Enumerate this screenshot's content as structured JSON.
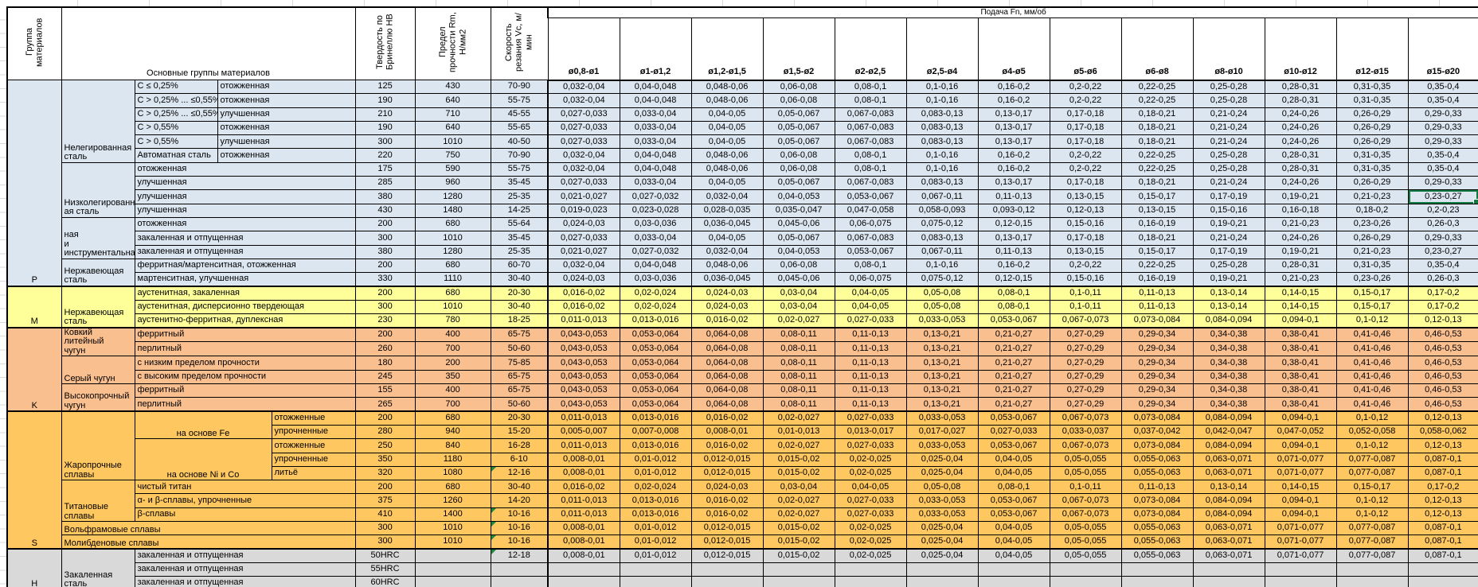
{
  "header": {
    "group_col": "Группа материалов",
    "materials_col": "Основные группы материалов",
    "hb_col": "Твердость по Бринеллю HB",
    "rm_col": "Предел прочности Rm, Н/мм2",
    "vc_col": "Скорость резания Vc, м/мин",
    "feed_title": "Подача Fn, мм/об",
    "feed_cols": [
      "ø0,8-ø1",
      "ø1-ø1,2",
      "ø1,2-ø1,5",
      "ø1,5-ø2",
      "ø2-ø2,5",
      "ø2,5-ø4",
      "ø4-ø5",
      "ø5-ø6",
      "ø6-ø8",
      "ø8-ø10",
      "ø10-ø12",
      "ø12-ø15",
      "ø15-ø20"
    ]
  },
  "group_colors": {
    "P": "#DCE6F1",
    "M": "#FFFF99",
    "K": "#FABF8F",
    "S": "#FFC75F",
    "H": "#D9D9D9"
  },
  "selection": {
    "row": 9,
    "feed_col": 13,
    "value": "0,23-0,27",
    "border_color": "#107C41"
  },
  "flag_color": "#1E8A3C",
  "feed_patterns": {
    "A": [
      "0,032-0,04",
      "0,04-0,048",
      "0,048-0,06",
      "0,06-0,08",
      "0,08-0,1",
      "0,1-0,16",
      "0,16-0,2",
      "0,2-0,22",
      "0,22-0,25",
      "0,25-0,28",
      "0,28-0,31",
      "0,31-0,35",
      "0,35-0,4"
    ],
    "B": [
      "0,027-0,033",
      "0,033-0,04",
      "0,04-0,05",
      "0,05-0,067",
      "0,067-0,083",
      "0,083-0,13",
      "0,13-0,17",
      "0,17-0,18",
      "0,18-0,21",
      "0,21-0,24",
      "0,24-0,26",
      "0,26-0,29",
      "0,29-0,33"
    ],
    "C": [
      "0,021-0,027",
      "0,027-0,032",
      "0,032-0,04",
      "0,04-0,053",
      "0,053-0,067",
      "0,067-0,11",
      "0,11-0,13",
      "0,13-0,15",
      "0,15-0,17",
      "0,17-0,19",
      "0,19-0,21",
      "0,21-0,23",
      "0,23-0,27"
    ],
    "D": [
      "0,019-0,023",
      "0,023-0,028",
      "0,028-0,035",
      "0,035-0,047",
      "0,047-0,058",
      "0,058-0,093",
      "0,093-0,12",
      "0,12-0,13",
      "0,13-0,15",
      "0,15-0,16",
      "0,16-0,18",
      "0,18-0,2",
      "0,2-0,23"
    ],
    "E": [
      "0,024-0,03",
      "0,03-0,036",
      "0,036-0,045",
      "0,045-0,06",
      "0,06-0,075",
      "0,075-0,12",
      "0,12-0,15",
      "0,15-0,16",
      "0,16-0,19",
      "0,19-0,21",
      "0,21-0,23",
      "0,23-0,26",
      "0,26-0,3"
    ],
    "F": [
      "0,016-0,02",
      "0,02-0,024",
      "0,024-0,03",
      "0,03-0,04",
      "0,04-0,05",
      "0,05-0,08",
      "0,08-0,1",
      "0,1-0,11",
      "0,11-0,13",
      "0,13-0,14",
      "0,14-0,15",
      "0,15-0,17",
      "0,17-0,2"
    ],
    "G": [
      "0,011-0,013",
      "0,013-0,016",
      "0,016-0,02",
      "0,02-0,027",
      "0,027-0,033",
      "0,033-0,053",
      "0,053-0,067",
      "0,067-0,073",
      "0,073-0,084",
      "0,084-0,094",
      "0,094-0,1",
      "0,1-0,12",
      "0,12-0,13"
    ],
    "H": [
      "0,043-0,053",
      "0,053-0,064",
      "0,064-0,08",
      "0,08-0,11",
      "0,11-0,13",
      "0,13-0,21",
      "0,21-0,27",
      "0,27-0,29",
      "0,29-0,34",
      "0,34-0,38",
      "0,38-0,41",
      "0,41-0,46",
      "0,46-0,53"
    ],
    "I": [
      "0,005-0,007",
      "0,007-0,008",
      "0,008-0,01",
      "0,01-0,013",
      "0,013-0,017",
      "0,017-0,027",
      "0,027-0,033",
      "0,033-0,037",
      "0,037-0,042",
      "0,042-0,047",
      "0,047-0,052",
      "0,052-0,058",
      "0,058-0,062"
    ],
    "J": [
      "0,008-0,01",
      "0,01-0,012",
      "0,012-0,015",
      "0,015-0,02",
      "0,02-0,025",
      "0,025-0,04",
      "0,04-0,05",
      "0,05-0,055",
      "0,055-0,063",
      "0,063-0,071",
      "0,071-0,077",
      "0,077-0,087",
      "0,087-0,1"
    ]
  },
  "rows": [
    {
      "g": "P",
      "cells": [
        {
          "t": "P",
          "rs": 15,
          "cls": "group"
        },
        {
          "t": "Нелегированная\nсталь",
          "rs": 6,
          "cls": "family"
        },
        {
          "t": "C ≤ 0,25%",
          "cls": "sub"
        },
        {
          "t": "отожженная",
          "cs": 2,
          "cls": "state"
        }
      ],
      "hb": "125",
      "rm": "430",
      "vc": "70-90",
      "fp": "A"
    },
    {
      "g": "P",
      "cells": [
        {
          "t": "C > 0,25% ... ≤0,55%",
          "cls": "sub"
        },
        {
          "t": "отожженная",
          "cs": 2,
          "cls": "state"
        }
      ],
      "hb": "190",
      "rm": "640",
      "vc": "55-75",
      "fp": "A"
    },
    {
      "g": "P",
      "cells": [
        {
          "t": "C > 0,25% ... ≤0,55%",
          "cls": "sub"
        },
        {
          "t": "улучшенная",
          "cs": 2,
          "cls": "state"
        }
      ],
      "hb": "210",
      "rm": "710",
      "vc": "45-55",
      "fp": "B"
    },
    {
      "g": "P",
      "cells": [
        {
          "t": "C > 0,55%",
          "cls": "sub"
        },
        {
          "t": "отожженная",
          "cs": 2,
          "cls": "state"
        }
      ],
      "hb": "190",
      "rm": "640",
      "vc": "55-65",
      "fp": "B"
    },
    {
      "g": "P",
      "cells": [
        {
          "t": "C > 0,55%",
          "cls": "sub"
        },
        {
          "t": "улучшенная",
          "cs": 2,
          "cls": "state"
        }
      ],
      "hb": "300",
      "rm": "1010",
      "vc": "40-50",
      "fp": "B"
    },
    {
      "g": "P",
      "cells": [
        {
          "t": "Автоматная сталь",
          "cls": "sub"
        },
        {
          "t": "отожженная",
          "cs": 2,
          "cls": "state"
        }
      ],
      "hb": "220",
      "rm": "750",
      "vc": "70-90",
      "fp": "A"
    },
    {
      "g": "P",
      "cells": [
        {
          "t": "Низколегированн\nая сталь",
          "rs": 4,
          "cls": "family"
        },
        {
          "t": "отожженная",
          "cs": 3,
          "cls": "state"
        }
      ],
      "hb": "175",
      "rm": "590",
      "vc": "55-75",
      "fp": "A"
    },
    {
      "g": "P",
      "cells": [
        {
          "t": "улучшенная",
          "cs": 3,
          "cls": "state"
        }
      ],
      "hb": "285",
      "rm": "960",
      "vc": "35-45",
      "fp": "B"
    },
    {
      "g": "P",
      "cells": [
        {
          "t": "улучшенная",
          "cs": 3,
          "cls": "state"
        }
      ],
      "hb": "380",
      "rm": "1280",
      "vc": "25-35",
      "fp": "C"
    },
    {
      "g": "P",
      "cells": [
        {
          "t": "улучшенная",
          "cs": 3,
          "cls": "state"
        }
      ],
      "hb": "430",
      "rm": "1480",
      "vc": "14-25",
      "fp": "D"
    },
    {
      "g": "P",
      "cells": [
        {
          "t": "ная\nи\nинструментальна",
          "rs": 3,
          "cls": "family"
        },
        {
          "t": "отожженная",
          "cs": 3,
          "cls": "state"
        }
      ],
      "hb": "200",
      "rm": "680",
      "vc": "55-64",
      "fp": "E"
    },
    {
      "g": "P",
      "cells": [
        {
          "t": "закаленная и отпущенная",
          "cs": 3,
          "cls": "state"
        }
      ],
      "hb": "300",
      "rm": "1010",
      "vc": "35-45",
      "fp": "B"
    },
    {
      "g": "P",
      "cells": [
        {
          "t": "закаленная и отпущенная",
          "cs": 3,
          "cls": "state"
        }
      ],
      "hb": "380",
      "rm": "1280",
      "vc": "25-35",
      "fp": "C"
    },
    {
      "g": "P",
      "cells": [
        {
          "t": "Нержавеющая\nсталь",
          "rs": 2,
          "cls": "family"
        },
        {
          "t": "ферритная/мартенситная, отожженная",
          "cs": 3,
          "cls": "state"
        }
      ],
      "hb": "200",
      "rm": "680",
      "vc": "60-70",
      "fp": "A"
    },
    {
      "g": "P",
      "cells": [
        {
          "t": "мартенситная, улучшенная",
          "cs": 3,
          "cls": "state"
        }
      ],
      "hb": "330",
      "rm": "1110",
      "vc": "30-40",
      "fp": "E"
    },
    {
      "g": "M",
      "sep": true,
      "cells": [
        {
          "t": "M",
          "rs": 3,
          "cls": "group"
        },
        {
          "t": "Нержавеющая\nсталь",
          "rs": 3,
          "cls": "family"
        },
        {
          "t": "аустенитная, закаленная",
          "cs": 3,
          "cls": "state"
        }
      ],
      "hb": "200",
      "rm": "680",
      "vc": "20-30",
      "fp": "F"
    },
    {
      "g": "M",
      "cells": [
        {
          "t": "аустенитная, дисперсионно твердеющая",
          "cs": 3,
          "cls": "state"
        }
      ],
      "hb": "300",
      "rm": "1010",
      "vc": "30-40",
      "fp": "F"
    },
    {
      "g": "M",
      "cells": [
        {
          "t": "аустенитно-ферритная, дуплексная",
          "cs": 3,
          "cls": "state"
        }
      ],
      "hb": "230",
      "rm": "780",
      "vc": "18-25",
      "fp": "G"
    },
    {
      "g": "K",
      "sep": true,
      "cells": [
        {
          "t": "K",
          "rs": 6,
          "cls": "group"
        },
        {
          "t": "Ковкий литейный\nчугун",
          "rs": 2,
          "cls": "family"
        },
        {
          "t": "ферритный",
          "cs": 3,
          "cls": "state"
        }
      ],
      "hb": "200",
      "rm": "400",
      "vc": "65-75",
      "fp": "H"
    },
    {
      "g": "K",
      "cells": [
        {
          "t": "перлитный",
          "cs": 3,
          "cls": "state"
        }
      ],
      "hb": "260",
      "rm": "700",
      "vc": "50-60",
      "fp": "H"
    },
    {
      "g": "K",
      "cells": [
        {
          "t": "Серый чугун",
          "rs": 2,
          "cls": "family"
        },
        {
          "t": "с низким пределом прочности",
          "cs": 3,
          "cls": "state"
        }
      ],
      "hb": "180",
      "rm": "200",
      "vc": "75-85",
      "fp": "H"
    },
    {
      "g": "K",
      "cells": [
        {
          "t": "с высоким пределом прочности",
          "cs": 3,
          "cls": "state"
        }
      ],
      "hb": "245",
      "rm": "350",
      "vc": "65-75",
      "fp": "H"
    },
    {
      "g": "K",
      "cells": [
        {
          "t": "Высокопрочный\nчугун",
          "rs": 2,
          "cls": "family"
        },
        {
          "t": "ферритный",
          "cs": 3,
          "cls": "state"
        }
      ],
      "hb": "155",
      "rm": "400",
      "vc": "65-75",
      "fp": "H"
    },
    {
      "g": "K",
      "cells": [
        {
          "t": "перлитный",
          "cs": 3,
          "cls": "state"
        }
      ],
      "hb": "265",
      "rm": "700",
      "vc": "50-60",
      "fp": "H"
    },
    {
      "g": "S",
      "sep": true,
      "cells": [
        {
          "t": "S",
          "rs": 10,
          "cls": "group"
        },
        {
          "t": "Жаропрочные\nсплавы",
          "rs": 5,
          "cls": "family"
        },
        {
          "t": "на основе Fe",
          "rs": 2,
          "cs": 2,
          "cls": "subm"
        },
        {
          "t": "отожженные",
          "cls": "state"
        }
      ],
      "hb": "200",
      "rm": "680",
      "vc": "20-30",
      "fp": "G"
    },
    {
      "g": "S",
      "cells": [
        {
          "t": "упрочненные",
          "cls": "state"
        }
      ],
      "hb": "280",
      "rm": "940",
      "vc": "15-20",
      "fp": "I"
    },
    {
      "g": "S",
      "cells": [
        {
          "t": "на основе Ni и Co",
          "rs": 3,
          "cs": 2,
          "cls": "subm"
        },
        {
          "t": "отожженные",
          "cls": "state"
        }
      ],
      "hb": "250",
      "rm": "840",
      "vc": "16-28",
      "fp": "G"
    },
    {
      "g": "S",
      "cells": [
        {
          "t": "упрочненные",
          "cls": "state"
        }
      ],
      "hb": "350",
      "rm": "1180",
      "vc": "6-10",
      "fp": "J"
    },
    {
      "g": "S",
      "cells": [
        {
          "t": "литьё",
          "cls": "state"
        }
      ],
      "hb": "320",
      "rm": "1080",
      "vc": "12-16",
      "fp": "J",
      "vflag": true
    },
    {
      "g": "S",
      "cells": [
        {
          "t": "Титановые\nсплавы",
          "rs": 3,
          "cls": "family"
        },
        {
          "t": "чистый титан",
          "cs": 3,
          "cls": "state"
        }
      ],
      "hb": "200",
      "rm": "680",
      "vc": "30-40",
      "fp": "F"
    },
    {
      "g": "S",
      "cells": [
        {
          "t": "α- и β-сплавы, упрочненные",
          "cs": 3,
          "cls": "state"
        }
      ],
      "hb": "375",
      "rm": "1260",
      "vc": "14-20",
      "fp": "G"
    },
    {
      "g": "S",
      "cells": [
        {
          "t": "β-сплавы",
          "cs": 3,
          "cls": "state"
        }
      ],
      "hb": "410",
      "rm": "1400",
      "vc": "10-16",
      "fp": "G",
      "vflag": true
    },
    {
      "g": "S",
      "cells": [
        {
          "t": "Вольфрамовые сплавы",
          "cs": 4,
          "cls": "family"
        }
      ],
      "hb": "300",
      "rm": "1010",
      "vc": "10-16",
      "fp": "J",
      "vflag": true
    },
    {
      "g": "S",
      "cells": [
        {
          "t": "Молибденовые сплавы",
          "cs": 4,
          "cls": "family"
        }
      ],
      "hb": "300",
      "rm": "1010",
      "vc": "10-16",
      "fp": "J",
      "vflag": true
    },
    {
      "g": "H",
      "sep": true,
      "cells": [
        {
          "t": "H",
          "rs": 3,
          "cls": "group"
        },
        {
          "t": "Закаленная\nсталь",
          "rs": 3,
          "cls": "family"
        },
        {
          "t": "закаленная и отпущенная",
          "cs": 3,
          "cls": "state"
        }
      ],
      "hb": "50HRC",
      "rm": "",
      "vc": "12-18",
      "fp": "J",
      "vflag": true
    },
    {
      "g": "H",
      "cells": [
        {
          "t": "закаленная и отпущенная",
          "cs": 3,
          "cls": "state"
        }
      ],
      "hb": "55HRC",
      "rm": "",
      "vc": "",
      "fp": null
    },
    {
      "g": "H",
      "cells": [
        {
          "t": "закаленная и отпущенная",
          "cs": 3,
          "cls": "state"
        }
      ],
      "hb": "60HRC",
      "rm": "",
      "vc": "",
      "fp": null
    }
  ]
}
